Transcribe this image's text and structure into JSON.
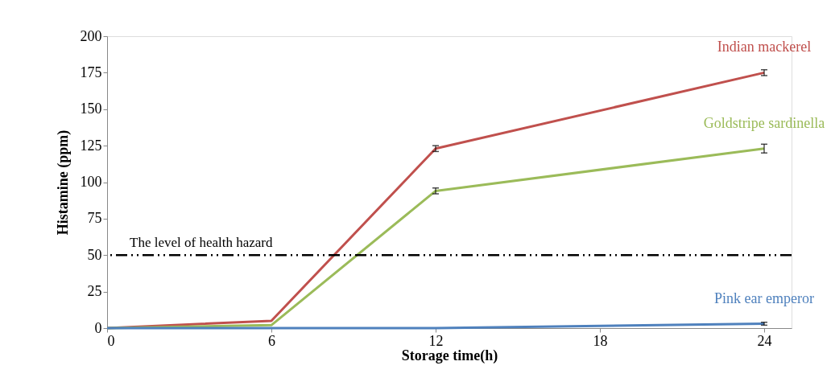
{
  "chart_data": {
    "type": "line",
    "xlabel": "Storage time(h)",
    "ylabel": "Histamine (ppm)",
    "x": [
      0,
      6,
      12,
      24
    ],
    "series": [
      {
        "name": "Indian mackerel",
        "color": "#c0504d",
        "values": [
          0,
          5,
          123,
          175
        ],
        "errors": [
          null,
          null,
          2,
          2
        ]
      },
      {
        "name": "Goldstripe sardinella",
        "color": "#9bbb59",
        "values": [
          0,
          2,
          94,
          123
        ],
        "errors": [
          null,
          null,
          2,
          3
        ]
      },
      {
        "name": "Pink ear emperor",
        "color": "#4f81bd",
        "values": [
          0,
          0,
          0,
          3
        ],
        "errors": [
          null,
          null,
          null,
          1
        ]
      }
    ],
    "xlim": [
      0,
      25
    ],
    "xticks": [
      0,
      6,
      12,
      18,
      24
    ],
    "ylim": [
      0,
      200
    ],
    "yticks": [
      0,
      25,
      50,
      75,
      100,
      125,
      150,
      175,
      200
    ],
    "ref_lines": [
      {
        "axis": "y",
        "value": 50,
        "label": "The level of health hazard",
        "color": "#000000",
        "line_style": "dashdotdot"
      }
    ],
    "grid": false,
    "legend": false,
    "marker": "none",
    "line_style": "solid"
  }
}
